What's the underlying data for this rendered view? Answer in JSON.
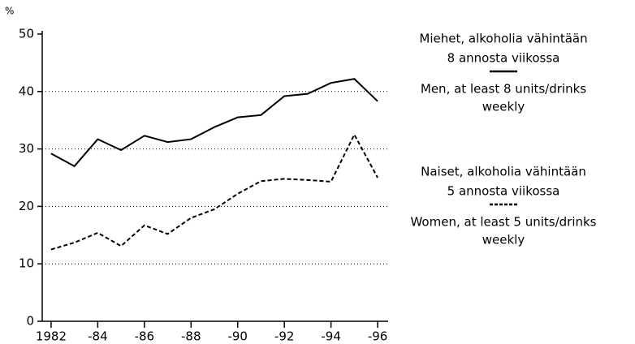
{
  "chart_data": {
    "type": "line",
    "ylabel": "%",
    "x": [
      1982,
      1983,
      1984,
      1985,
      1986,
      1987,
      1988,
      1989,
      1990,
      1991,
      1992,
      1993,
      1994,
      1995,
      1996
    ],
    "series": [
      {
        "name": [
          "Miehet, alkoholia vähintään",
          "8 annosta viikossa"
        ],
        "name_en": [
          "Men, at least 8 units/drinks",
          "weekly"
        ],
        "color": "#000000",
        "dash": "solid",
        "values": [
          29.2,
          27,
          31.7,
          29.8,
          32.3,
          31.2,
          31.7,
          33.8,
          35.5,
          35.9,
          39.2,
          39.6,
          41.5,
          42.2,
          38.3
        ]
      },
      {
        "name": [
          "Naiset, alkoholia vähintään",
          "5 annosta viikossa"
        ],
        "name_en": [
          "Women, at least 5 units/drinks",
          "weekly"
        ],
        "color": "#000000",
        "dash": "dashed",
        "values": [
          12.5,
          13.7,
          15.4,
          13.1,
          16.7,
          15.2,
          18,
          19.5,
          22.2,
          24.4,
          24.8,
          24.6,
          24.3,
          32.5,
          25
        ]
      }
    ],
    "xlim": [
      1981.62,
      1996.45
    ],
    "xticks": [
      {
        "value": 1982,
        "label": "1982"
      },
      {
        "value": 1984,
        "label": "-84"
      },
      {
        "value": 1986,
        "label": "-86"
      },
      {
        "value": 1988,
        "label": "-88"
      },
      {
        "value": 1990,
        "label": "-90"
      },
      {
        "value": 1992,
        "label": "-92"
      },
      {
        "value": 1994,
        "label": "-94"
      },
      {
        "value": 1996,
        "label": "-96"
      }
    ],
    "ylim": [
      0,
      50
    ],
    "yticks": [
      0,
      10,
      20,
      30,
      40,
      50
    ],
    "grid": true
  }
}
